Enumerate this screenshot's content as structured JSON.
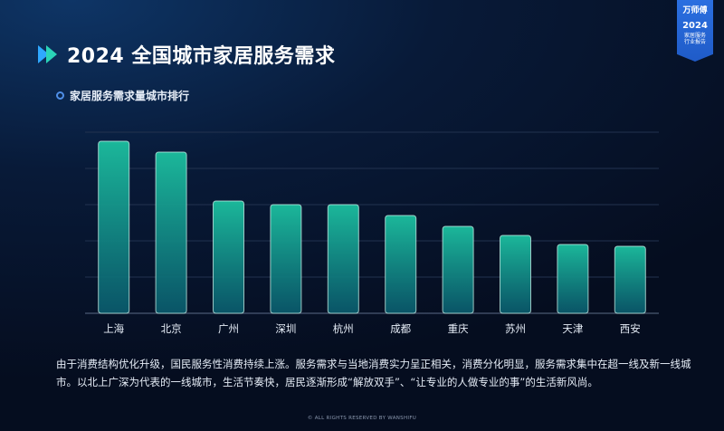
{
  "header": {
    "title": "2024 全国城市家居服务需求"
  },
  "badge": {
    "brand": "万师傅",
    "year": "2024",
    "line1": "家居服务",
    "line2": "行业报告"
  },
  "colors": {
    "bar_top": "#1bb79a",
    "bar_bottom": "#0a5c6e",
    "bar_border": "#c9f4ea",
    "accent": "#2e80ff",
    "badge": "#2b6fe0"
  },
  "chart_data": {
    "type": "bar",
    "title": "家居服务需求量城市排行",
    "categories": [
      "上海",
      "北京",
      "广州",
      "深圳",
      "杭州",
      "成都",
      "重庆",
      "苏州",
      "天津",
      "西安"
    ],
    "values": [
      95,
      89,
      62,
      60,
      60,
      54,
      48,
      43,
      38,
      37
    ],
    "ylim": [
      0,
      100
    ],
    "grid": true
  },
  "paragraph": "由于消费结构优化升级，国民服务性消费持续上涨。服务需求与当地消费实力呈正相关，消费分化明显，服务需求集中在超一线及新一线城市。以北上广深为代表的一线城市，生活节奏快，居民逐渐形成“解放双手”、“让专业的人做专业的事”的生活新风尚。",
  "footer": "© ALL RIGHTS RESERVED BY WANSHIFU"
}
